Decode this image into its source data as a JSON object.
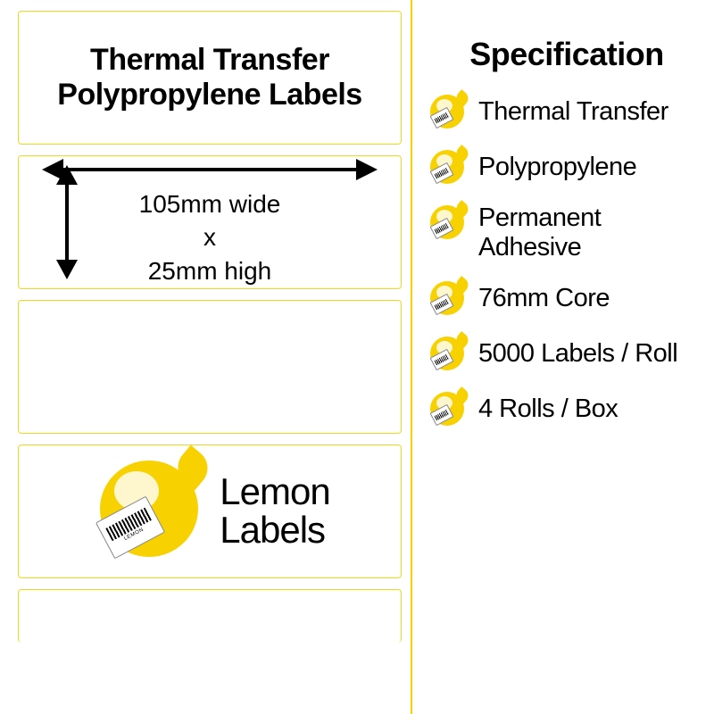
{
  "colors": {
    "accent": "#f7d200",
    "border": "#f0d820",
    "divider": "#f5d400",
    "text": "#000000"
  },
  "left": {
    "product_title": "Thermal Transfer Polypropylene Labels",
    "dimensions": {
      "width_line": "105mm wide",
      "separator": "x",
      "height_line": "25mm high"
    },
    "brand": {
      "line1": "Lemon",
      "line2": "Labels"
    }
  },
  "spec": {
    "title": "Specification",
    "items": [
      {
        "label": "Thermal Transfer"
      },
      {
        "label": "Polypropylene"
      },
      {
        "label": "Permanent Adhesive",
        "multiline": true,
        "line1": "Permanent",
        "line2": "Adhesive"
      },
      {
        "label": "76mm Core"
      },
      {
        "label": "5000 Labels / Roll"
      },
      {
        "label": "4 Rolls / Box"
      }
    ]
  }
}
